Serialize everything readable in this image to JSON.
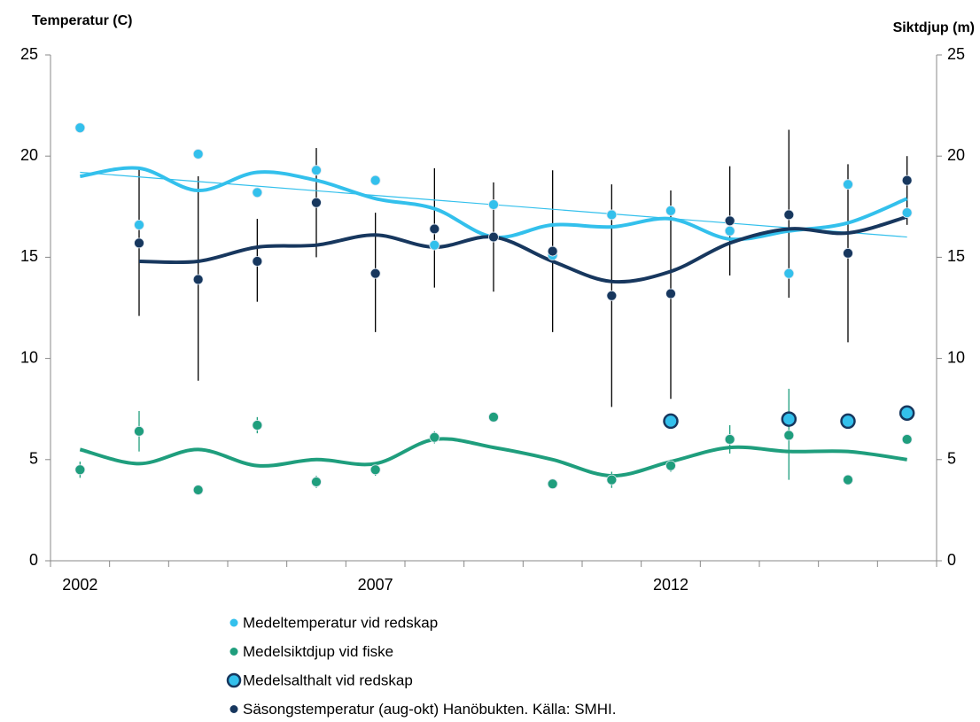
{
  "chart_data": {
    "type": "line",
    "y_axis_label": "Temperatur (C)",
    "y2_axis_label": "Siktdjup (m)",
    "categories": [
      "2002",
      null,
      null,
      null,
      null,
      "2007",
      null,
      null,
      null,
      null,
      "2012",
      null,
      null,
      null,
      null
    ],
    "ylim": [
      0,
      25
    ],
    "yticks": [
      0,
      5,
      10,
      15,
      20,
      25
    ],
    "y2lim": [
      0,
      25
    ],
    "y2ticks": [
      0,
      5,
      10,
      15,
      20,
      25
    ],
    "series": [
      {
        "name": "Medeltemperatur vid redskap",
        "color": "#33c0ec",
        "marker": "dot",
        "values": [
          21.4,
          16.6,
          20.1,
          18.2,
          19.3,
          18.8,
          15.6,
          17.6,
          15.1,
          17.1,
          17.3,
          16.3,
          14.2,
          18.6,
          17.2
        ],
        "smooth_values": [
          19.0,
          19.4,
          18.3,
          19.2,
          18.8,
          17.9,
          17.4,
          16.0,
          16.6,
          16.5,
          16.9,
          15.9,
          16.3,
          16.7,
          17.9
        ],
        "linear_trend": [
          19.2,
          16.0
        ]
      },
      {
        "name": "Medelsiktdjup vid fiske",
        "color": "#1f9e7d",
        "marker": "dot",
        "axis": "y2",
        "values": [
          4.5,
          6.4,
          3.5,
          6.7,
          3.9,
          4.5,
          6.1,
          7.1,
          3.8,
          4.0,
          4.7,
          6.0,
          6.2,
          4.0,
          6.0
        ],
        "error_low": [
          4.1,
          5.4,
          null,
          6.3,
          3.6,
          4.2,
          5.8,
          null,
          null,
          3.6,
          4.4,
          5.3,
          4.0,
          3.8,
          null
        ],
        "error_high": [
          4.9,
          7.4,
          null,
          7.1,
          4.2,
          4.8,
          6.4,
          null,
          null,
          4.4,
          5.0,
          6.7,
          8.5,
          4.2,
          null
        ],
        "smooth_values": [
          5.5,
          4.8,
          5.5,
          4.7,
          5.0,
          4.8,
          6.0,
          5.6,
          5.0,
          4.2,
          4.9,
          5.6,
          5.4,
          5.4,
          5.0
        ]
      },
      {
        "name": "Medelsalthalt vid redskap",
        "color": "#33c0ec",
        "edge_color": "#17375e",
        "marker": "ring",
        "values": [
          null,
          null,
          null,
          null,
          null,
          null,
          null,
          null,
          null,
          null,
          6.9,
          null,
          7.0,
          6.9,
          7.3
        ]
      },
      {
        "name": "Säsongstemperatur (aug-okt) Hanöbukten. Källa: SMHI.",
        "color": "#17375e",
        "marker": "dot",
        "values": [
          null,
          15.7,
          13.9,
          14.8,
          17.7,
          14.2,
          16.4,
          16.0,
          15.3,
          13.1,
          13.2,
          16.8,
          17.1,
          15.2,
          18.8
        ],
        "error_low": [
          null,
          12.1,
          8.9,
          12.8,
          15.0,
          11.3,
          13.5,
          13.3,
          11.3,
          7.6,
          8.0,
          14.1,
          13.0,
          10.8,
          16.6
        ],
        "error_high": [
          null,
          19.4,
          19.0,
          16.9,
          20.4,
          17.2,
          19.4,
          18.7,
          19.3,
          18.6,
          18.3,
          19.5,
          21.3,
          19.6,
          20.0
        ],
        "error_color": "#000000",
        "smooth_values": [
          null,
          14.8,
          14.8,
          15.5,
          15.6,
          16.1,
          15.5,
          16.0,
          14.8,
          13.8,
          14.3,
          15.7,
          16.4,
          16.2,
          17.0
        ]
      }
    ]
  }
}
